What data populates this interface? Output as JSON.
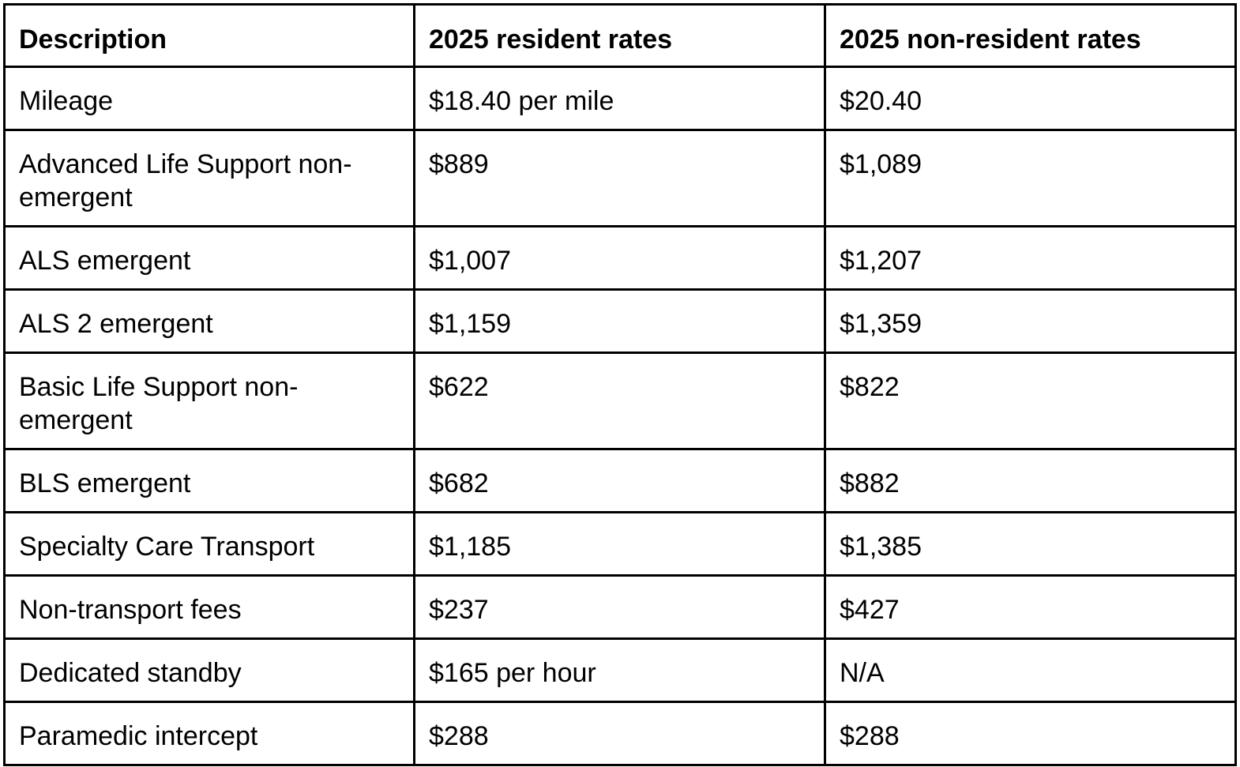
{
  "table": {
    "headers": [
      "Description",
      "2025 resident rates",
      "2025 non-resident rates"
    ],
    "rows": [
      {
        "description": "Mileage",
        "resident": "$18.40 per mile",
        "non_resident": "$20.40"
      },
      {
        "description": "Advanced Life Support non-emergent",
        "resident": "$889",
        "non_resident": "$1,089"
      },
      {
        "description": "ALS emergent",
        "resident": "$1,007",
        "non_resident": "$1,207"
      },
      {
        "description": "ALS 2 emergent",
        "resident": "$1,159",
        "non_resident": "$1,359"
      },
      {
        "description": "Basic Life Support non-emergent",
        "resident": "$622",
        "non_resident": "$822"
      },
      {
        "description": "BLS emergent",
        "resident": "$682",
        "non_resident": "$882"
      },
      {
        "description": "Specialty Care Transport",
        "resident": "$1,185",
        "non_resident": "$1,385"
      },
      {
        "description": "Non-transport fees",
        "resident": "$237",
        "non_resident": "$427"
      },
      {
        "description": "Dedicated standby",
        "resident": "$165 per hour",
        "non_resident": "N/A"
      },
      {
        "description": "Paramedic intercept",
        "resident": "$288",
        "non_resident": "$288"
      }
    ]
  }
}
